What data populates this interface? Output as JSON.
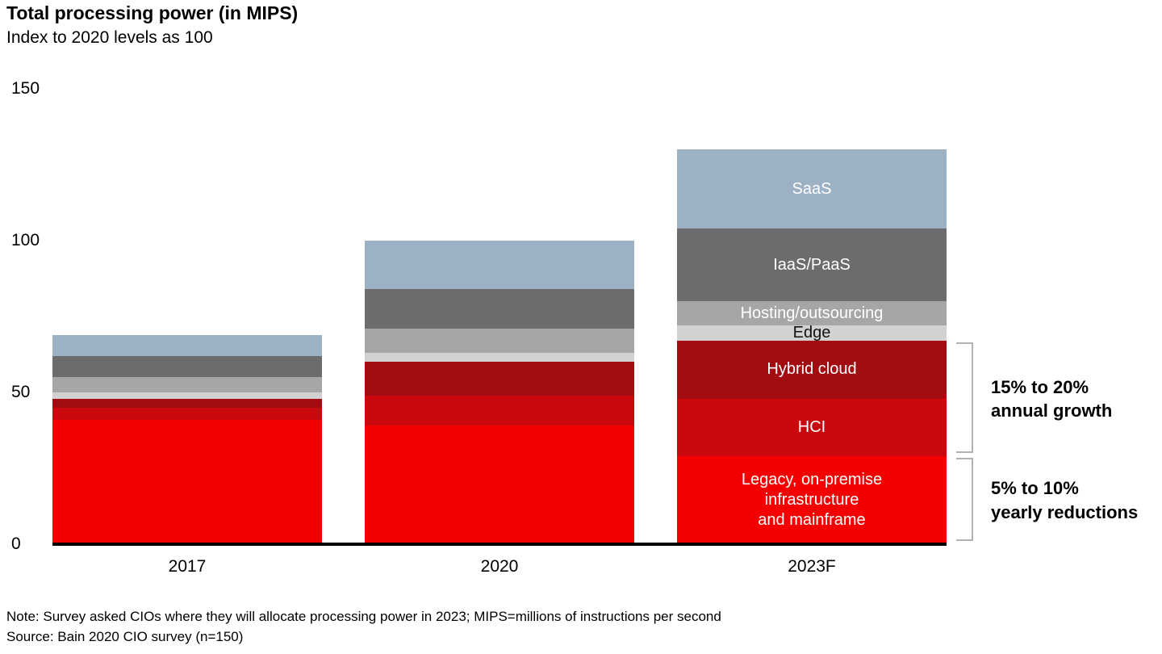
{
  "chart_data": {
    "type": "bar",
    "stacked": true,
    "title": "Total processing power (in MIPS)",
    "subtitle": "Index to 2020 levels as 100",
    "categories": [
      "2017",
      "2020",
      "2023F"
    ],
    "ylim": [
      0,
      150
    ],
    "yticks": [
      0,
      50,
      100,
      150
    ],
    "grid": false,
    "legend_position": "labels shown inside last bar only",
    "series": [
      {
        "name": "Legacy, on-premise infrastructure and mainframe",
        "label": "Legacy, on-premise\ninfrastructure\nand mainframe",
        "color": "#f40000",
        "label_color": "#ffffff",
        "values": [
          41,
          39,
          29
        ]
      },
      {
        "name": "HCI",
        "label": "HCI",
        "color": "#c9090d",
        "label_color": "#ffffff",
        "values": [
          4,
          10,
          19
        ]
      },
      {
        "name": "Hybrid cloud",
        "label": "Hybrid cloud",
        "color": "#a30d12",
        "label_color": "#ffffff",
        "values": [
          3,
          11,
          19
        ]
      },
      {
        "name": "Edge",
        "label": "Edge",
        "color": "#d2d2d3",
        "label_color": "#111111",
        "values": [
          2,
          3,
          5
        ]
      },
      {
        "name": "Hosting/outsourcing",
        "label": "Hosting/outsourcing",
        "color": "#a6a6a8",
        "label_color": "#ffffff",
        "values": [
          5,
          8,
          8
        ]
      },
      {
        "name": "IaaS/PaaS",
        "label": "IaaS/PaaS",
        "color": "#6c6c6e",
        "label_color": "#ffffff",
        "values": [
          7,
          13,
          24
        ]
      },
      {
        "name": "SaaS",
        "label": "SaaS",
        "color": "#9db1c4",
        "label_color": "#ffffff",
        "values": [
          7,
          16,
          26
        ]
      }
    ],
    "annotations": [
      {
        "label": "15% to 20%\nannual growth",
        "from": 29,
        "to": 67
      },
      {
        "label": "5% to 10%\nyearly reductions",
        "from": 0,
        "to": 29
      }
    ]
  },
  "footer": {
    "note": "Note: Survey asked CIOs where they will allocate processing power in 2023; MIPS=millions of instructions per second",
    "source": "Source: Bain 2020 CIO survey (n=150)"
  }
}
